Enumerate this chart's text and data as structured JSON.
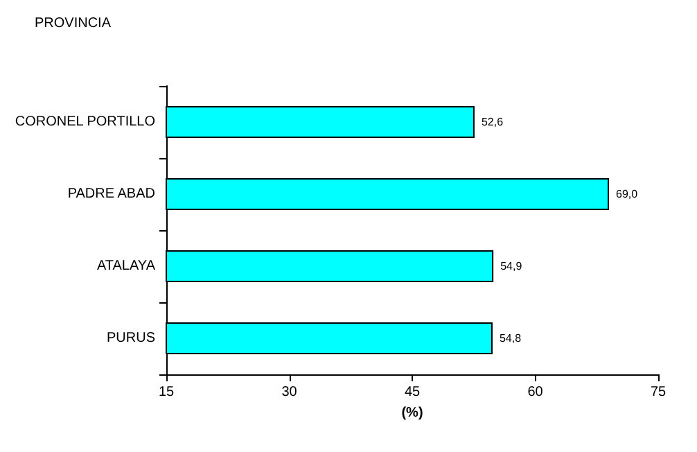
{
  "chart_data": {
    "type": "bar",
    "orientation": "horizontal",
    "ylabel": "PROVINCIA",
    "xlabel": "(%)",
    "categories": [
      "CORONEL PORTILLO",
      "PADRE ABAD",
      "ATALAYA",
      "PURUS"
    ],
    "values": [
      52.6,
      69.0,
      54.9,
      54.8
    ],
    "value_labels": [
      "52,6",
      "69,0",
      "54,9",
      "54,8"
    ],
    "color": "#00ffff",
    "xlim": [
      15,
      75
    ],
    "xticks": [
      15,
      30,
      45,
      60,
      75
    ],
    "grid": false
  }
}
